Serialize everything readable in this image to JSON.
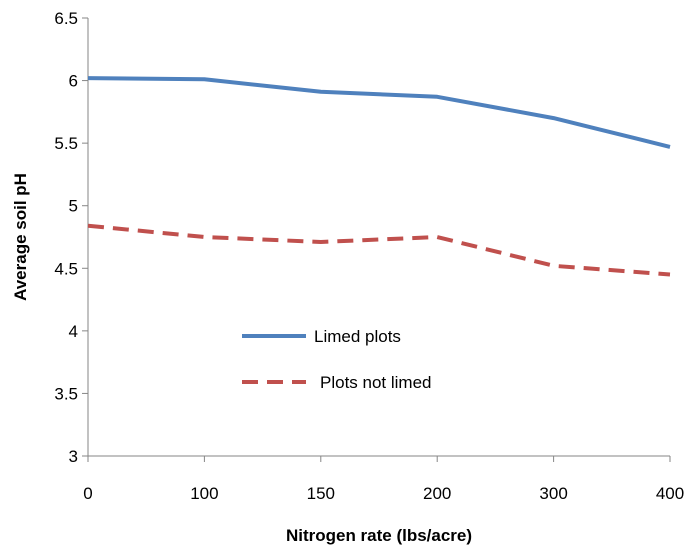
{
  "chart_data": {
    "type": "line",
    "categories": [
      "0",
      "100",
      "150",
      "200",
      "300",
      "400"
    ],
    "series": [
      {
        "name": "Limed plots",
        "values": [
          6.02,
          6.01,
          5.91,
          5.87,
          5.7,
          5.47
        ],
        "color": "#4f81bd",
        "dash": "solid"
      },
      {
        "name": "Plots not limed",
        "values": [
          4.84,
          4.75,
          4.71,
          4.75,
          4.52,
          4.45
        ],
        "color": "#c0504d",
        "dash": "dashed"
      }
    ],
    "title": "",
    "xlabel": "Nitrogen rate (lbs/acre)",
    "ylabel": "Average soil pH",
    "ylim": [
      3,
      6.5
    ],
    "yticks": [
      "3",
      "3.5",
      "4",
      "4.5",
      "5",
      "5.5",
      "6",
      "6.5"
    ],
    "grid": false,
    "legend_position": "center-left"
  }
}
